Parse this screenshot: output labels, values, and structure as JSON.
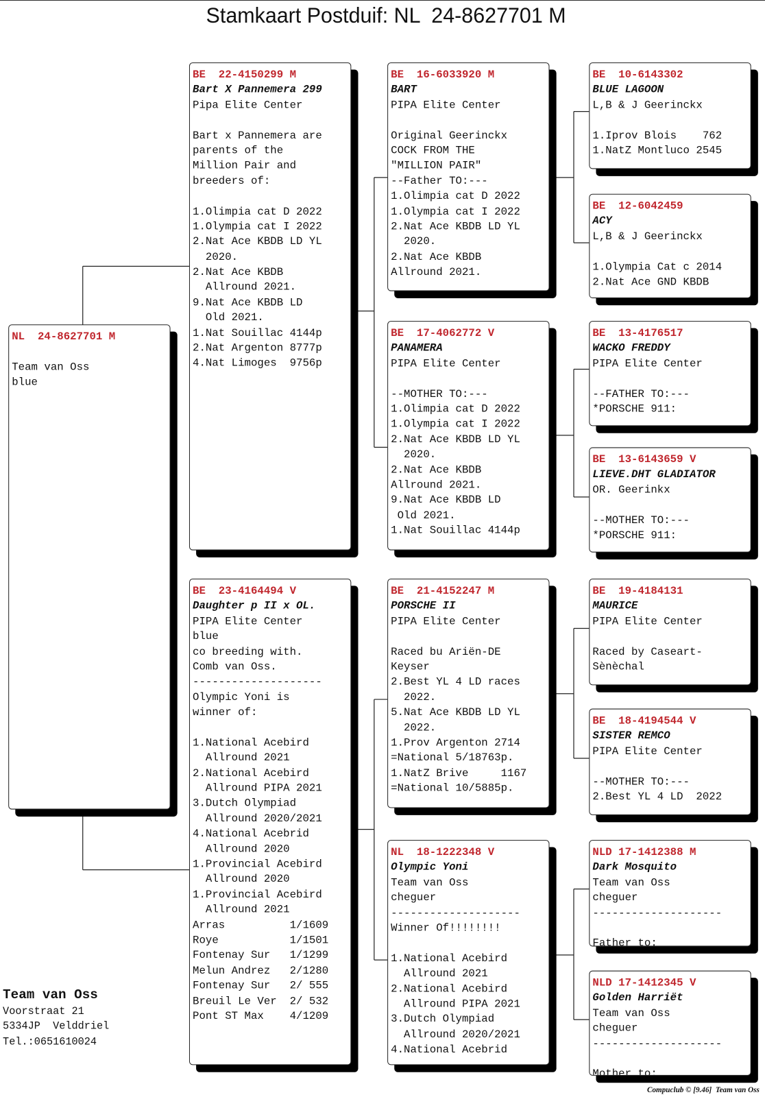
{
  "title": "Stamkaart Postduif: NL  24-8627701 M",
  "subject": {
    "id": "NL  24-8627701 M",
    "lines": [],
    "blocks": [
      [
        "Team van Oss",
        "blue"
      ]
    ]
  },
  "parents": [
    {
      "id": "BE  22-4150299 M",
      "name": "Bart X Pannemera 299",
      "lines": [
        "Pipa Elite Center"
      ],
      "blocks": [
        [
          "Bart x Pannemera are",
          "parents of the",
          "Million Pair and",
          "breeders of:"
        ],
        [
          "1.Olimpia cat D 2022",
          "1.Olympia cat I 2022",
          "2.Nat Ace KBDB LD YL",
          "  2020.",
          "2.Nat Ace KBDB",
          "  Allround 2021.",
          "9.Nat Ace KBDB LD",
          "  Old 2021.",
          "1.Nat Souillac 4144p",
          "2.Nat Argenton 8777p",
          "4.Nat Limoges  9756p"
        ]
      ]
    },
    {
      "id": "BE  23-4164494 V",
      "name": "Daughter p II x OL.",
      "lines": [
        "PIPA Elite Center",
        "blue",
        "co breeding with.",
        "Comb van Oss.",
        "--------------------",
        "Olympic Yoni is",
        "winner of:"
      ],
      "blocks": [
        [
          "1.National Acebird",
          "  Allround 2021",
          "2.National Acebird",
          "  Allround PIPA 2021",
          "3.Dutch Olympiad",
          "  Allround 2020/2021",
          "4.National Acebrid",
          "  Allround 2020",
          "1.Provincial Acebird",
          "  Allround 2020",
          "1.Provincial Acebird",
          "  Allround 2021",
          "Arras          1/1609",
          "Roye           1/1501",
          "Fontenay Sur   1/1299",
          "Melun Andrez   2/1280",
          "Fontenay Sur   2/ 555",
          "Breuil Le Ver  2/ 532",
          "Pont ST Max    4/1209"
        ]
      ]
    }
  ],
  "grandparents": [
    {
      "id": "BE  16-6033920 M",
      "name": "BART",
      "lines": [
        "PIPA Elite Center"
      ],
      "blocks": [
        [
          "Original Geerinckx",
          "COCK FROM THE",
          "\"MILLION PAIR\"",
          "--Father TO:---",
          "1.Olimpia cat D 2022",
          "1.Olympia cat I 2022",
          "2.Nat Ace KBDB LD YL",
          "  2020.",
          "2.Nat Ace KBDB",
          "Allround 2021."
        ]
      ]
    },
    {
      "id": "BE  17-4062772 V",
      "name": "PANAMERA",
      "lines": [
        "PIPA Elite Center"
      ],
      "blocks": [
        [
          "--MOTHER TO:---",
          "1.Olimpia cat D 2022",
          "1.Olympia cat I 2022",
          "2.Nat Ace KBDB LD YL",
          "  2020.",
          "2.Nat Ace KBDB",
          "Allround 2021.",
          "9.Nat Ace KBDB LD",
          " Old 2021.",
          "1.Nat Souillac 4144p"
        ]
      ]
    },
    {
      "id": "BE  21-4152247 M",
      "name": "PORSCHE II",
      "lines": [
        "PIPA Elite Center"
      ],
      "blocks": [
        [
          "Raced bu Ariën-DE",
          "Keyser",
          "2.Best YL 4 LD races",
          "  2022.",
          "5.Nat Ace KBDB LD YL",
          "  2022.",
          "1.Prov Argenton 2714",
          "=National 5/18763p.",
          "1.NatZ Brive     1167",
          "=National 10/5885p."
        ]
      ]
    },
    {
      "id": "NL  18-1222348 V",
      "name": "Olympic Yoni",
      "lines": [
        "Team van Oss",
        "cheguer",
        "--------------------",
        "Winner Of!!!!!!!!"
      ],
      "blocks": [
        [
          "1.National Acebird",
          "  Allround 2021",
          "2.National Acebird",
          "  Allround PIPA 2021",
          "3.Dutch Olympiad",
          "  Allround 2020/2021",
          "4.National Acebrid"
        ]
      ]
    }
  ],
  "great_grandparents": [
    {
      "id": "BE  10-6143302",
      "name": "BLUE LAGOON",
      "lines": [
        "L,B & J Geerinckx"
      ],
      "blocks": [
        [
          "1.Iprov Blois    762",
          "1.NatZ Montluco 2545"
        ]
      ]
    },
    {
      "id": "BE  12-6042459",
      "name": "ACY",
      "lines": [
        "L,B & J Geerinckx"
      ],
      "blocks": [
        [
          "1.Olympia Cat c 2014",
          "2.Nat Ace GND KBDB"
        ]
      ]
    },
    {
      "id": "BE  13-4176517",
      "name": "WACKO FREDDY",
      "lines": [
        "PIPA Elite Center"
      ],
      "blocks": [
        [
          "--FATHER TO:---",
          "*PORSCHE 911:"
        ]
      ]
    },
    {
      "id": "BE  13-6143659 V",
      "name": "LIEVE.DHT GLADIATOR",
      "lines": [
        "OR. Geerinkx"
      ],
      "blocks": [
        [
          "--MOTHER TO:---",
          "*PORSCHE 911:"
        ]
      ]
    },
    {
      "id": "BE  19-4184131",
      "name": "MAURICE",
      "lines": [
        "PIPA Elite Center"
      ],
      "blocks": [
        [
          "Raced by Caseart-",
          "Sènèchal"
        ]
      ]
    },
    {
      "id": "BE  18-4194544 V",
      "name": "SISTER REMCO",
      "lines": [
        "PIPA Elite Center"
      ],
      "blocks": [
        [
          "--MOTHER TO:---",
          "2.Best YL 4 LD  2022"
        ]
      ]
    },
    {
      "id": "NLD 17-1412388 M",
      "name": "Dark Mosquito",
      "lines": [
        "Team van Oss",
        "cheguer",
        "--------------------"
      ],
      "blocks": [
        [
          "Father to:"
        ]
      ]
    },
    {
      "id": "NLD 17-1412345 V",
      "name": "Golden Harriët",
      "lines": [
        "Team van Oss",
        "cheguer",
        "--------------------"
      ],
      "blocks": [
        [
          "Mother to:"
        ]
      ]
    }
  ],
  "owner": {
    "name": "Team van Oss",
    "lines": [
      "Voorstraat 21",
      "5334JP  Velddriel",
      "Tel.:0651610024"
    ]
  },
  "credit": "Compuclub © [9.46]  Team van Oss"
}
